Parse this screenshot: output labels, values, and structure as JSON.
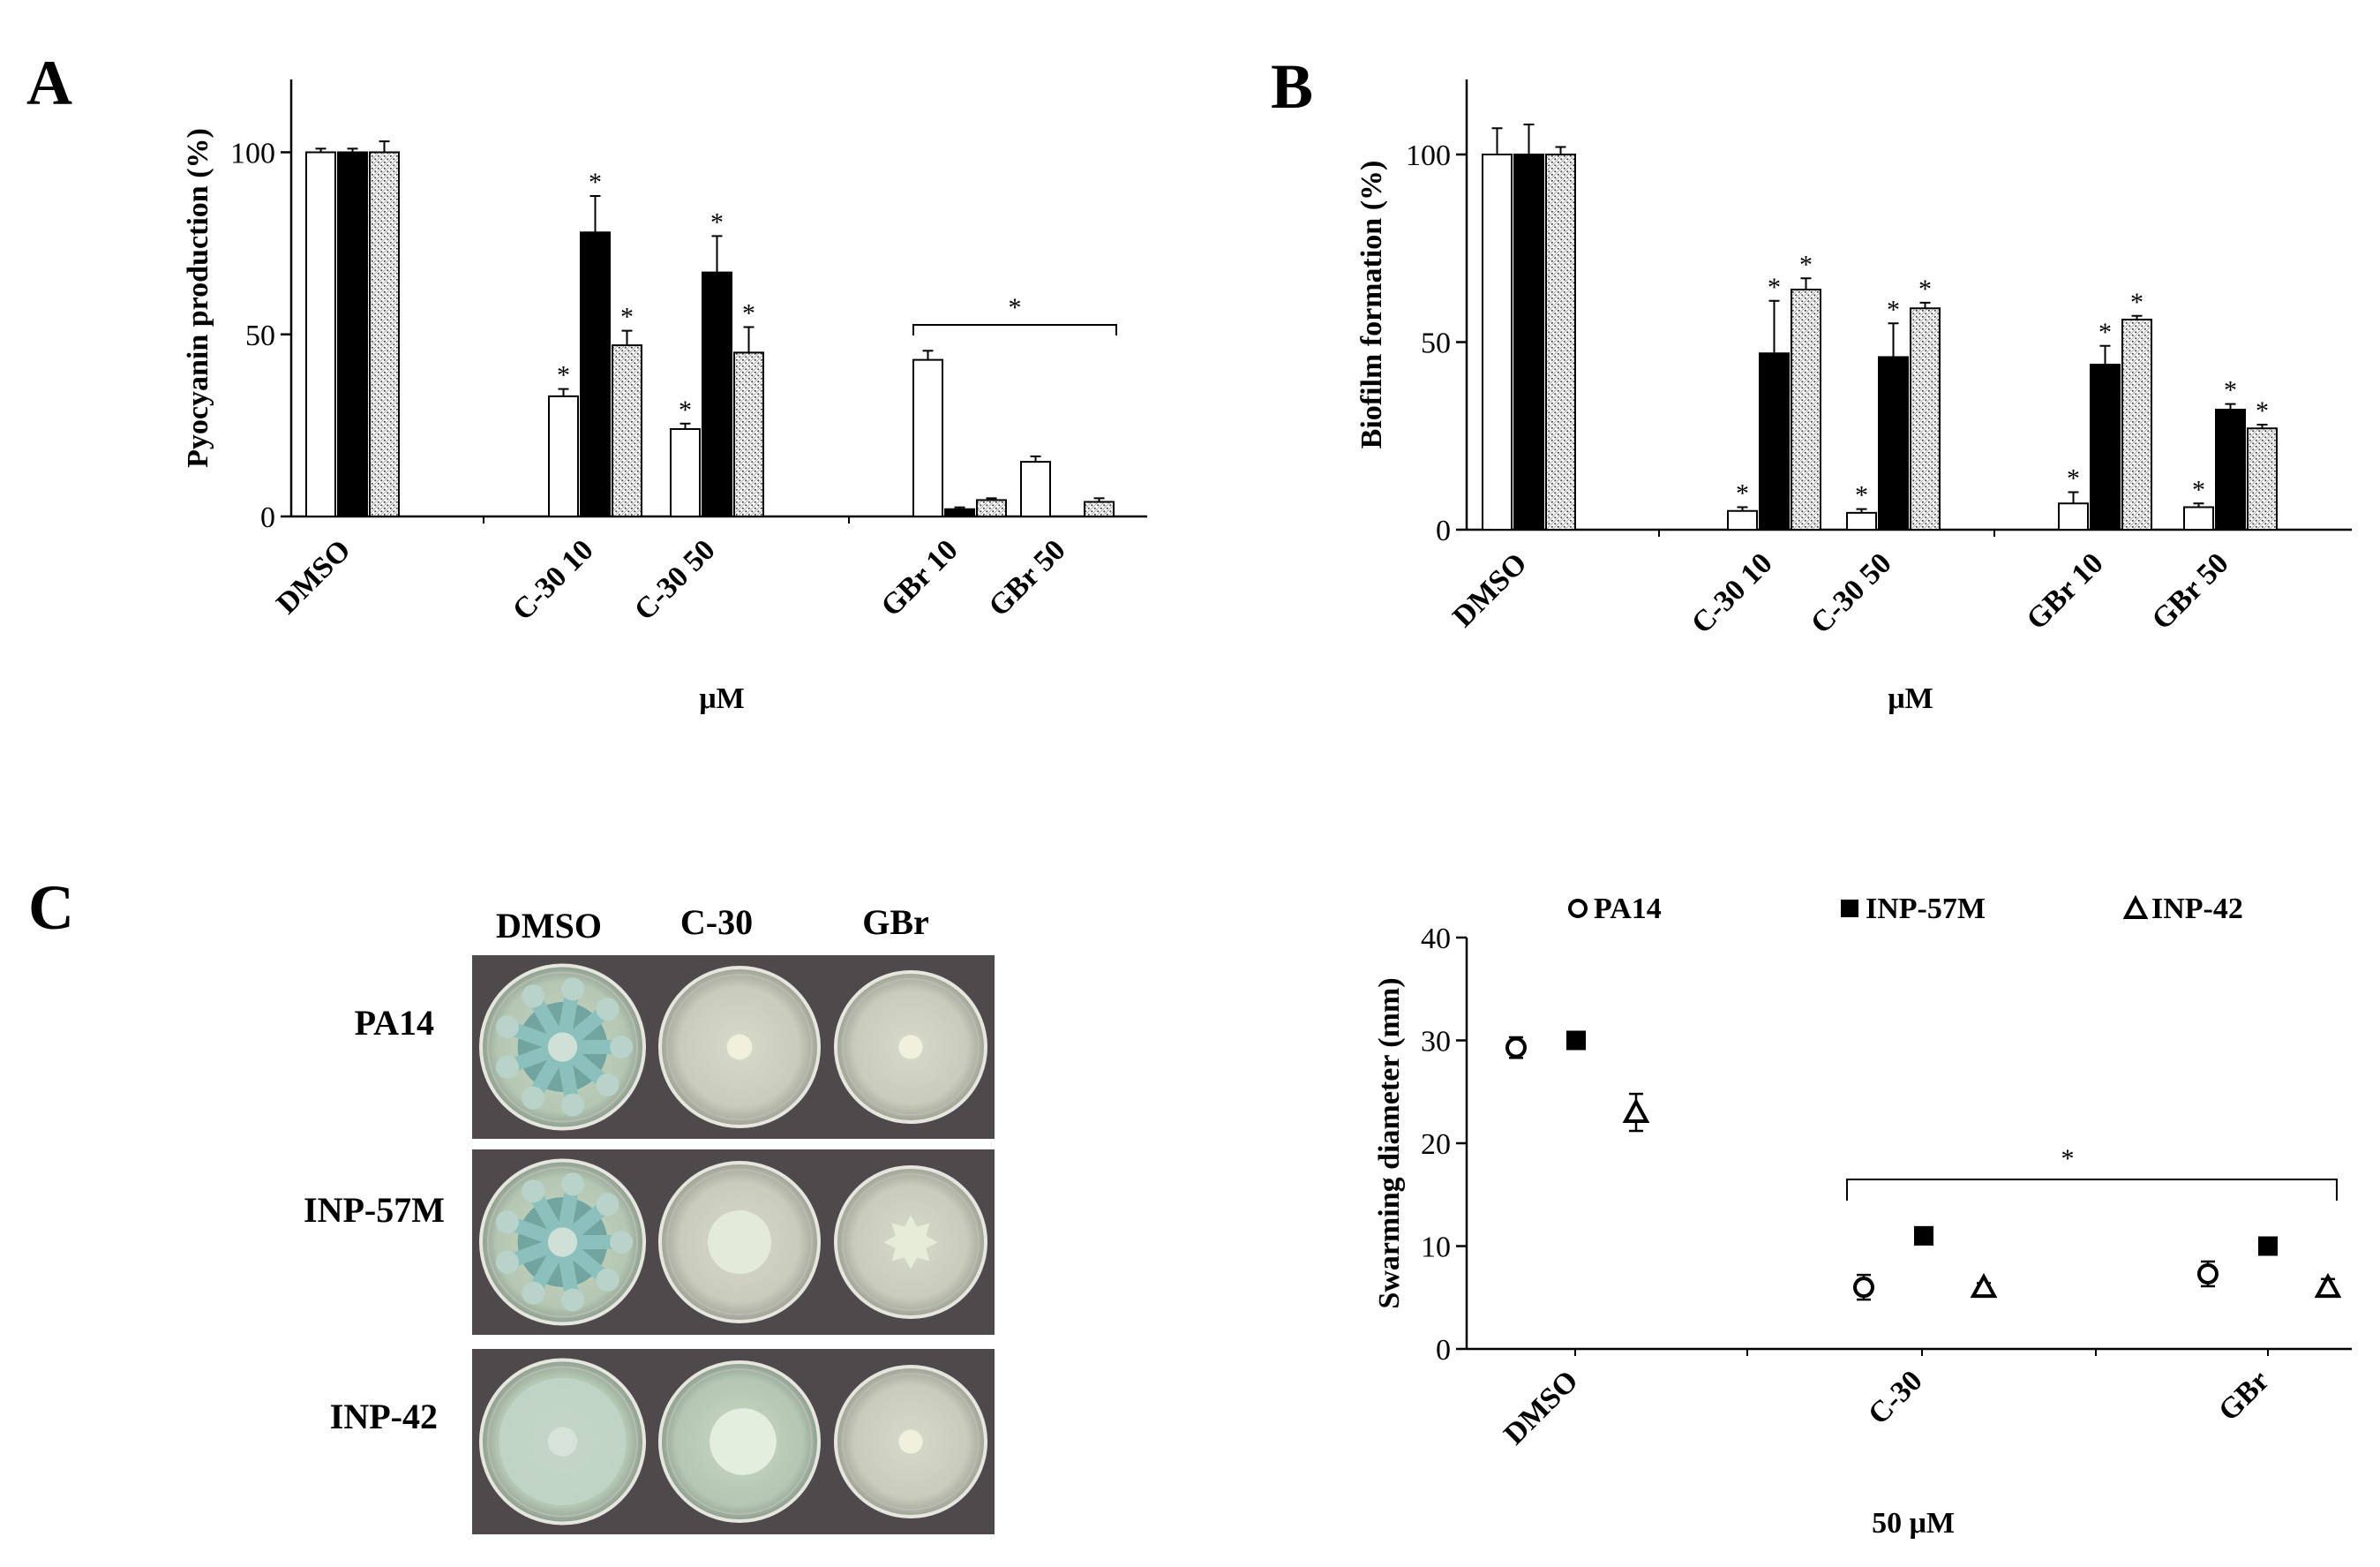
{
  "panels": {
    "a": {
      "letter": "A"
    },
    "b": {
      "letter": "B"
    },
    "c": {
      "letter": "C"
    }
  },
  "significance_mark": "*",
  "chart_data": [
    {
      "type": "bar",
      "panel": "A",
      "ylabel": "Pyocyanin production (%)",
      "xlabel": "μM",
      "yticks": [
        "0",
        "50",
        "100"
      ],
      "ylim": [
        0,
        120
      ],
      "categories": [
        "DMSO",
        "C-30 10",
        "C-30 50",
        "GBr 10",
        "GBr 50"
      ],
      "series_styles": [
        "white",
        "black",
        "hatched"
      ],
      "series": [
        {
          "values": [
            100,
            33,
            24,
            43,
            15
          ],
          "errors": [
            1,
            2,
            1.5,
            2.5,
            1.5
          ]
        },
        {
          "values": [
            100,
            78,
            67,
            2,
            0
          ],
          "errors": [
            1,
            10,
            10,
            0.5,
            0
          ]
        },
        {
          "values": [
            100,
            47,
            45,
            4.5,
            4
          ],
          "errors": [
            3,
            4,
            7,
            0.5,
            1
          ]
        }
      ],
      "significant": [
        [
          false,
          true,
          true,
          false,
          false
        ],
        [
          false,
          true,
          true,
          false,
          false
        ],
        [
          false,
          true,
          true,
          false,
          false
        ]
      ],
      "bracket": {
        "from": "GBr 10",
        "to": "GBr 50"
      }
    },
    {
      "type": "bar",
      "panel": "B",
      "ylabel": "Biofilm formation (%)",
      "xlabel": "μM",
      "yticks": [
        "0",
        "50",
        "100"
      ],
      "ylim": [
        0,
        120
      ],
      "categories": [
        "DMSO",
        "C-30 10",
        "C-30 50",
        "GBr 10",
        "GBr 50"
      ],
      "series_styles": [
        "white",
        "black",
        "hatched"
      ],
      "series": [
        {
          "values": [
            100,
            5,
            4.5,
            7,
            6
          ],
          "errors": [
            7,
            1,
            1,
            3,
            1
          ]
        },
        {
          "values": [
            100,
            47,
            46,
            44,
            32
          ],
          "errors": [
            8,
            14,
            9,
            5,
            1.5
          ]
        },
        {
          "values": [
            100,
            64,
            59,
            56,
            27
          ],
          "errors": [
            2,
            3,
            1.5,
            1,
            1
          ]
        }
      ],
      "significant": [
        [
          false,
          true,
          true,
          true,
          true
        ],
        [
          false,
          true,
          true,
          true,
          true
        ],
        [
          false,
          true,
          true,
          true,
          true
        ]
      ]
    },
    {
      "type": "scatter",
      "panel": "C",
      "ylabel": "Swarming diameter (mm)",
      "xlabel": "50 μM",
      "yticks": [
        "0",
        "10",
        "20",
        "30",
        "40"
      ],
      "ylim": [
        0,
        40
      ],
      "categories": [
        "DMSO",
        "C-30",
        "GBr"
      ],
      "series": [
        {
          "name": "PA14",
          "marker": "circle",
          "values": [
            29.3,
            6,
            7.3
          ],
          "errors": [
            1,
            1.2,
            1.2
          ]
        },
        {
          "name": "INP-57M",
          "marker": "square",
          "values": [
            30,
            11,
            10
          ],
          "errors": [
            0.3,
            0.6,
            0.6
          ]
        },
        {
          "name": "INP-42",
          "marker": "triangle",
          "values": [
            23,
            6,
            6
          ],
          "errors": [
            1.8,
            0.4,
            0.8
          ]
        }
      ],
      "bracket": {
        "from": "C-30",
        "to": "GBr"
      }
    }
  ],
  "photo_grid": {
    "columns": [
      "DMSO",
      "C-30",
      "GBr"
    ],
    "rows": [
      "PA14",
      "INP-57M",
      "INP-42"
    ],
    "colony": [
      [
        "swarm-large",
        "dot-small",
        "dot-small"
      ],
      [
        "swarm-large",
        "spread-medium",
        "star-medium"
      ],
      [
        "hazy-large",
        "blob-medium",
        "dot-small"
      ]
    ]
  }
}
